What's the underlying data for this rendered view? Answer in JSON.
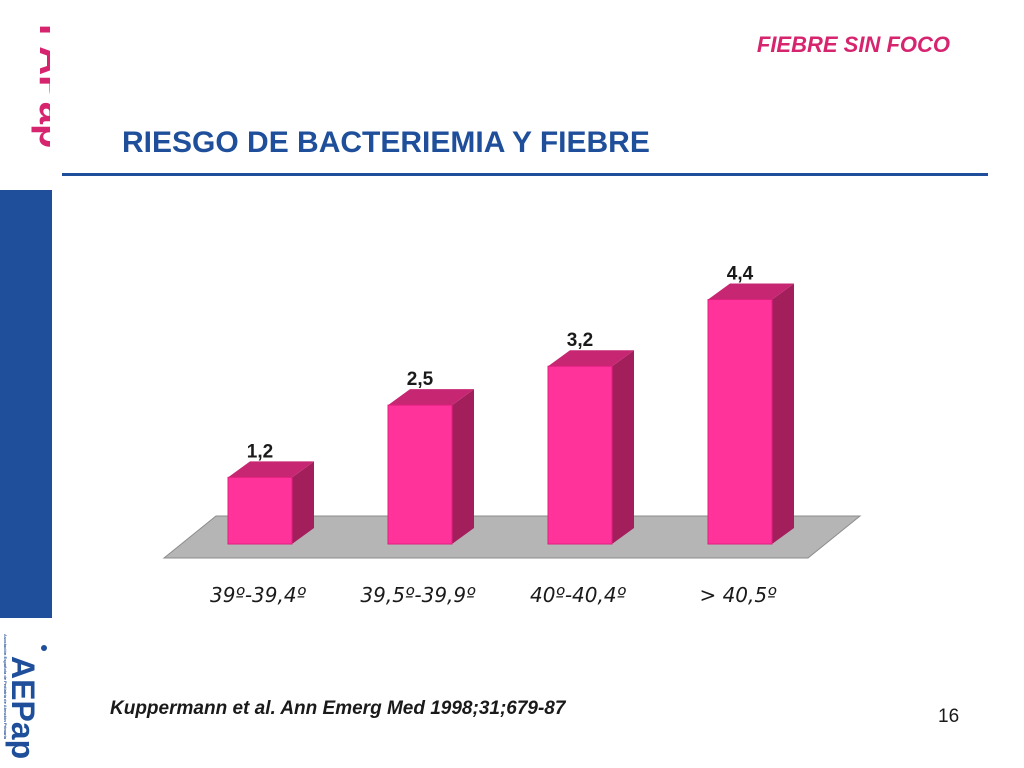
{
  "header": {
    "section_label": "FIEBRE SIN FOCO",
    "title": "RIESGO DE BACTERIEMIA Y FIEBRE"
  },
  "branding": {
    "top_logo_text": "FAPap",
    "bottom_logo_text": "AEPap",
    "bottom_logo_caption": "Asociación Española de Pediatría de Atención Primaria"
  },
  "colors": {
    "brand_blue": "#1f4f9a",
    "accent_pink": "#d6246e",
    "bar_front": "#ff3399",
    "bar_side": "#a31f5c",
    "bar_top": "#c72672",
    "floor": "#b5b5b5"
  },
  "chart_data": {
    "type": "bar",
    "categories": [
      "39º-39,4º",
      "39,5º-39,9º",
      "40º-40,4º",
      "> 40,5º"
    ],
    "values": [
      1.2,
      2.5,
      3.2,
      4.4
    ],
    "data_labels": [
      "1,2",
      "2,5",
      "3,2",
      "4,4"
    ],
    "title": "",
    "xlabel": "",
    "ylabel": "",
    "ylim": [
      0,
      4.5
    ],
    "grid": false,
    "legend": "none",
    "style": "3d"
  },
  "footer": {
    "citation": "Kuppermann et al. Ann Emerg Med 1998;31;679-87",
    "page_number": "16"
  }
}
